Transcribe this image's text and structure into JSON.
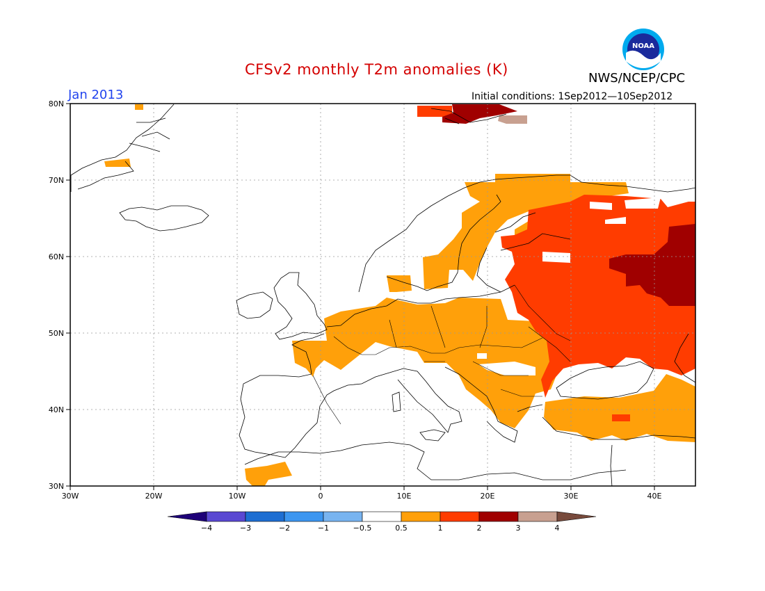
{
  "header": {
    "title": "CFSv2 monthly T2m anomalies (K)",
    "agency": "NWS/NCEP/CPC",
    "period": "Jan 2013",
    "initial_conditions": "Initial conditions: 1Sep2012—10Sep2012",
    "logo_text": "NOAA"
  },
  "map": {
    "lon_range": [
      -30,
      45
    ],
    "lat_range": [
      30,
      80
    ],
    "lon_ticks": [
      "30W",
      "20W",
      "10W",
      "0",
      "10E",
      "20E",
      "30E",
      "40E"
    ],
    "lat_ticks": [
      "80N",
      "70N",
      "60N",
      "50N",
      "40N",
      "30N"
    ],
    "grid": "dotted every 10 degrees"
  },
  "legend": {
    "labels": [
      "−4",
      "−3",
      "−2",
      "−1",
      "−0.5",
      "0.5",
      "1",
      "2",
      "3",
      "4"
    ],
    "colors": [
      "#1e0078",
      "#5a48d2",
      "#1e6ed2",
      "#3c96f0",
      "#78b4f0",
      "#ffffff",
      "#ffa00a",
      "#ff3c00",
      "#a00000",
      "#c8a090",
      "#784a3c"
    ]
  },
  "colors": {
    "anomaly_0_5_to_1": "#ffa00a",
    "anomaly_1_to_2": "#ff3c00",
    "anomaly_2_to_3": "#a00000",
    "anomaly_3_to_4": "#c8a090",
    "title_color": "#d40000",
    "period_color": "#2244ee"
  }
}
